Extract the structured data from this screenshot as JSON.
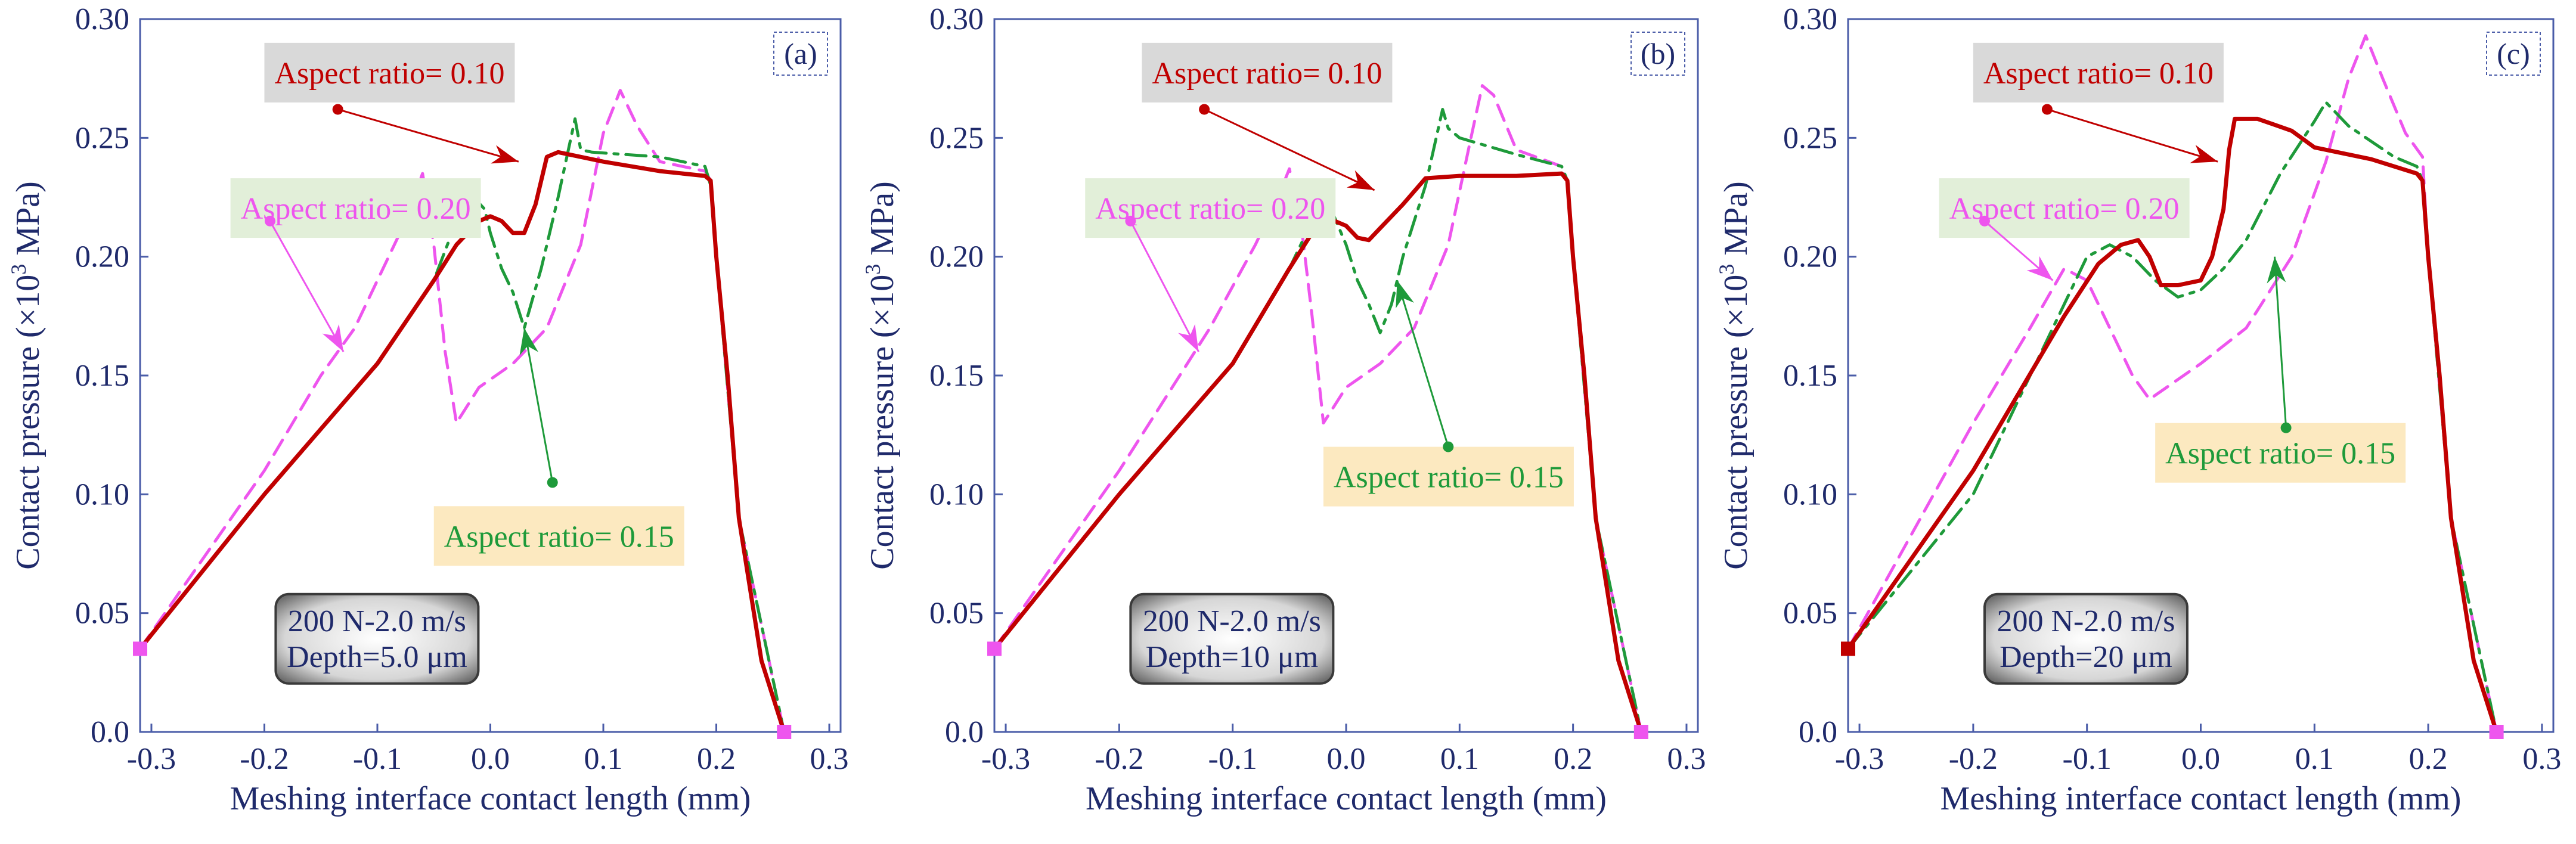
{
  "chart_data": [
    {
      "type": "line",
      "panel_label": "(a)",
      "xlabel": "Meshing interface contact length (mm)",
      "ylabel": "Contact pressure (×10",
      "ylabel_sup": "3",
      "ylabel_unit": " MPa)",
      "xlim": [
        -0.31,
        0.31
      ],
      "ylim": [
        0.0,
        0.3
      ],
      "xticks": [
        -0.3,
        -0.2,
        -0.1,
        0.0,
        0.1,
        0.2,
        0.3
      ],
      "xtick_labels": [
        "-0.3",
        "-0.2",
        "-0.1",
        "0.0",
        "0.1",
        "0.2",
        "0.3"
      ],
      "yticks": [
        0.0,
        0.05,
        0.1,
        0.15,
        0.2,
        0.25,
        0.3
      ],
      "ytick_labels": [
        "0.0",
        "0.05",
        "0.10",
        "0.15",
        "0.20",
        "0.25",
        "0.30"
      ],
      "condition": {
        "line1": "200 N-2.0 m/s",
        "line2": "Depth=5.0 μm"
      },
      "series": [
        {
          "name": "Aspect ratio= 0.10",
          "color": "#c00000",
          "style": "solid",
          "x": [
            -0.31,
            -0.2,
            -0.1,
            -0.05,
            -0.03,
            -0.01,
            0.0,
            0.01,
            0.02,
            0.03,
            0.04,
            0.05,
            0.06,
            0.1,
            0.15,
            0.19,
            0.195,
            0.2,
            0.21,
            0.22,
            0.24,
            0.26
          ],
          "y": [
            0.035,
            0.1,
            0.155,
            0.19,
            0.205,
            0.215,
            0.217,
            0.215,
            0.21,
            0.21,
            0.222,
            0.242,
            0.244,
            0.24,
            0.236,
            0.234,
            0.232,
            0.2,
            0.15,
            0.09,
            0.03,
            0.0
          ]
        },
        {
          "name": "Aspect ratio= 0.15",
          "color": "#1e9a3a",
          "style": "dashdot",
          "x": [
            -0.31,
            -0.2,
            -0.1,
            -0.05,
            -0.03,
            -0.015,
            -0.005,
            0.0,
            0.01,
            0.02,
            0.03,
            0.045,
            0.06,
            0.075,
            0.08,
            0.09,
            0.15,
            0.19,
            0.195,
            0.2,
            0.22,
            0.26
          ],
          "y": [
            0.035,
            0.1,
            0.155,
            0.19,
            0.215,
            0.225,
            0.22,
            0.21,
            0.195,
            0.185,
            0.17,
            0.195,
            0.225,
            0.258,
            0.245,
            0.244,
            0.242,
            0.238,
            0.23,
            0.2,
            0.09,
            0.0
          ]
        },
        {
          "name": "Aspect ratio= 0.20",
          "color": "#ee55ee",
          "style": "dashed",
          "x": [
            -0.31,
            -0.2,
            -0.15,
            -0.12,
            -0.08,
            -0.06,
            -0.05,
            -0.04,
            -0.03,
            -0.01,
            0.02,
            0.05,
            0.08,
            0.1,
            0.115,
            0.13,
            0.15,
            0.19,
            0.195,
            0.2,
            0.22,
            0.26
          ],
          "y": [
            0.035,
            0.11,
            0.15,
            0.17,
            0.21,
            0.235,
            0.205,
            0.16,
            0.13,
            0.145,
            0.155,
            0.17,
            0.205,
            0.252,
            0.27,
            0.255,
            0.24,
            0.236,
            0.232,
            0.2,
            0.09,
            0.0
          ]
        }
      ],
      "annotations": [
        {
          "text": "Aspect ratio= 0.10",
          "color": "#c00000",
          "bg": "#d9d9d9",
          "box_x": -0.2,
          "box_y": 0.29,
          "dot": [
            -0.135,
            0.262
          ],
          "tip": [
            0.025,
            0.24
          ]
        },
        {
          "text": "Aspect ratio= 0.20",
          "color": "#ee55ee",
          "bg": "#e2efd9",
          "box_x": -0.23,
          "box_y": 0.233,
          "dot": [
            -0.195,
            0.215
          ],
          "tip": [
            -0.13,
            0.16
          ]
        },
        {
          "text": "Aspect ratio= 0.15",
          "color": "#1e9a3a",
          "bg": "#fce9c0",
          "box_x": -0.05,
          "box_y": 0.095,
          "dot": [
            0.055,
            0.105
          ],
          "tip": [
            0.03,
            0.17
          ]
        }
      ]
    },
    {
      "type": "line",
      "panel_label": "(b)",
      "xlabel": "Meshing interface contact length (mm)",
      "ylabel": "Contact pressure (×10",
      "ylabel_sup": "3",
      "ylabel_unit": " MPa)",
      "xlim": [
        -0.31,
        0.31
      ],
      "ylim": [
        0.0,
        0.3
      ],
      "xticks": [
        -0.3,
        -0.2,
        -0.1,
        0.0,
        0.1,
        0.2,
        0.3
      ],
      "xtick_labels": [
        "-0.3",
        "-0.2",
        "-0.1",
        "0.0",
        "0.1",
        "0.2",
        "0.3"
      ],
      "yticks": [
        0.0,
        0.05,
        0.1,
        0.15,
        0.2,
        0.25,
        0.3
      ],
      "ytick_labels": [
        "0.0",
        "0.05",
        "0.10",
        "0.15",
        "0.20",
        "0.25",
        "0.30"
      ],
      "condition": {
        "line1": "200 N-2.0 m/s",
        "line2": "Depth=10 μm"
      },
      "series": [
        {
          "name": "Aspect ratio= 0.10",
          "color": "#c00000",
          "style": "solid",
          "x": [
            -0.31,
            -0.2,
            -0.1,
            -0.05,
            -0.03,
            -0.01,
            0.0,
            0.01,
            0.02,
            0.03,
            0.05,
            0.07,
            0.1,
            0.15,
            0.19,
            0.195,
            0.2,
            0.21,
            0.22,
            0.24,
            0.26
          ],
          "y": [
            0.035,
            0.1,
            0.155,
            0.195,
            0.21,
            0.215,
            0.213,
            0.208,
            0.207,
            0.212,
            0.222,
            0.233,
            0.234,
            0.234,
            0.235,
            0.232,
            0.2,
            0.15,
            0.09,
            0.03,
            0.0
          ]
        },
        {
          "name": "Aspect ratio= 0.15",
          "color": "#1e9a3a",
          "style": "dashdot",
          "x": [
            -0.31,
            -0.2,
            -0.1,
            -0.05,
            -0.03,
            -0.015,
            0.0,
            0.01,
            0.02,
            0.03,
            0.04,
            0.05,
            0.07,
            0.085,
            0.09,
            0.1,
            0.15,
            0.19,
            0.195,
            0.2,
            0.22,
            0.26
          ],
          "y": [
            0.035,
            0.1,
            0.155,
            0.195,
            0.215,
            0.222,
            0.205,
            0.19,
            0.18,
            0.168,
            0.18,
            0.2,
            0.23,
            0.262,
            0.254,
            0.25,
            0.243,
            0.238,
            0.232,
            0.2,
            0.09,
            0.0
          ]
        },
        {
          "name": "Aspect ratio= 0.20",
          "color": "#ee55ee",
          "style": "dashed",
          "x": [
            -0.31,
            -0.2,
            -0.12,
            -0.08,
            -0.06,
            -0.05,
            -0.04,
            -0.03,
            -0.02,
            0.0,
            0.03,
            0.06,
            0.09,
            0.11,
            0.12,
            0.13,
            0.15,
            0.19,
            0.195,
            0.2,
            0.22,
            0.26
          ],
          "y": [
            0.035,
            0.11,
            0.17,
            0.205,
            0.225,
            0.237,
            0.215,
            0.175,
            0.13,
            0.145,
            0.155,
            0.17,
            0.205,
            0.25,
            0.272,
            0.268,
            0.245,
            0.238,
            0.232,
            0.2,
            0.09,
            0.0
          ]
        }
      ],
      "annotations": [
        {
          "text": "Aspect ratio= 0.10",
          "color": "#c00000",
          "bg": "#d9d9d9",
          "box_x": -0.18,
          "box_y": 0.29,
          "dot": [
            -0.125,
            0.262
          ],
          "tip": [
            0.025,
            0.228
          ]
        },
        {
          "text": "Aspect ratio= 0.20",
          "color": "#ee55ee",
          "bg": "#e2efd9",
          "box_x": -0.23,
          "box_y": 0.233,
          "dot": [
            -0.19,
            0.215
          ],
          "tip": [
            -0.13,
            0.16
          ]
        },
        {
          "text": "Aspect ratio= 0.15",
          "color": "#1e9a3a",
          "bg": "#fce9c0",
          "box_x": -0.02,
          "box_y": 0.12,
          "dot": [
            0.09,
            0.12
          ],
          "tip": [
            0.045,
            0.19
          ]
        }
      ]
    },
    {
      "type": "line",
      "panel_label": "(c)",
      "xlabel": "Meshing interface contact length (mm)",
      "ylabel": "Contact pressure (×10",
      "ylabel_sup": "3",
      "ylabel_unit": " MPa)",
      "xlim": [
        -0.31,
        0.31
      ],
      "ylim": [
        0.0,
        0.3
      ],
      "xticks": [
        -0.3,
        -0.2,
        -0.1,
        0.0,
        0.1,
        0.2,
        0.3
      ],
      "xtick_labels": [
        "-0.3",
        "-0.2",
        "-0.1",
        "0.0",
        "0.1",
        "0.2",
        "0.3"
      ],
      "yticks": [
        0.0,
        0.05,
        0.1,
        0.15,
        0.2,
        0.25,
        0.3
      ],
      "ytick_labels": [
        "0.0",
        "0.05",
        "0.10",
        "0.15",
        "0.20",
        "0.25",
        "0.30"
      ],
      "condition": {
        "line1": "200 N-2.0 m/s",
        "line2": "Depth=20 μm"
      },
      "series": [
        {
          "name": "Aspect ratio= 0.10",
          "color": "#c00000",
          "style": "solid",
          "x": [
            -0.31,
            -0.2,
            -0.12,
            -0.09,
            -0.07,
            -0.055,
            -0.045,
            -0.035,
            -0.02,
            0.0,
            0.01,
            0.015,
            0.02,
            0.025,
            0.03,
            0.05,
            0.08,
            0.1,
            0.15,
            0.19,
            0.195,
            0.2,
            0.21,
            0.22,
            0.24,
            0.26
          ],
          "y": [
            0.035,
            0.11,
            0.175,
            0.197,
            0.205,
            0.207,
            0.2,
            0.188,
            0.188,
            0.19,
            0.2,
            0.21,
            0.22,
            0.245,
            0.258,
            0.258,
            0.253,
            0.246,
            0.241,
            0.235,
            0.232,
            0.2,
            0.15,
            0.09,
            0.03,
            0.0
          ]
        },
        {
          "name": "Aspect ratio= 0.15",
          "color": "#1e9a3a",
          "style": "dashdot",
          "x": [
            -0.31,
            -0.2,
            -0.14,
            -0.1,
            -0.08,
            -0.06,
            -0.04,
            -0.02,
            0.0,
            0.02,
            0.04,
            0.07,
            0.1,
            0.11,
            0.13,
            0.17,
            0.19,
            0.195,
            0.2,
            0.22,
            0.26
          ],
          "y": [
            0.035,
            0.1,
            0.16,
            0.2,
            0.205,
            0.2,
            0.19,
            0.183,
            0.186,
            0.195,
            0.207,
            0.235,
            0.257,
            0.265,
            0.255,
            0.242,
            0.238,
            0.232,
            0.2,
            0.09,
            0.0
          ]
        },
        {
          "name": "Aspect ratio= 0.20",
          "color": "#ee55ee",
          "style": "dashed",
          "x": [
            -0.31,
            -0.2,
            -0.15,
            -0.12,
            -0.1,
            -0.08,
            -0.06,
            -0.045,
            -0.03,
            0.0,
            0.04,
            0.08,
            0.11,
            0.13,
            0.145,
            0.16,
            0.18,
            0.195,
            0.2,
            0.22,
            0.26
          ],
          "y": [
            0.035,
            0.13,
            0.17,
            0.195,
            0.19,
            0.17,
            0.15,
            0.14,
            0.145,
            0.155,
            0.17,
            0.2,
            0.24,
            0.275,
            0.293,
            0.275,
            0.252,
            0.242,
            0.2,
            0.09,
            0.0
          ]
        }
      ],
      "annotations": [
        {
          "text": "Aspect ratio= 0.10",
          "color": "#c00000",
          "bg": "#d9d9d9",
          "box_x": -0.2,
          "box_y": 0.29,
          "dot": [
            -0.135,
            0.262
          ],
          "tip": [
            0.015,
            0.24
          ]
        },
        {
          "text": "Aspect ratio= 0.20",
          "color": "#ee55ee",
          "bg": "#e2efd9",
          "box_x": -0.23,
          "box_y": 0.233,
          "dot": [
            -0.19,
            0.215
          ],
          "tip": [
            -0.13,
            0.19
          ]
        },
        {
          "text": "Aspect ratio= 0.15",
          "color": "#1e9a3a",
          "bg": "#fce9c0",
          "box_x": -0.04,
          "box_y": 0.13,
          "dot": [
            0.075,
            0.128
          ],
          "tip": [
            0.065,
            0.2
          ]
        }
      ]
    }
  ]
}
